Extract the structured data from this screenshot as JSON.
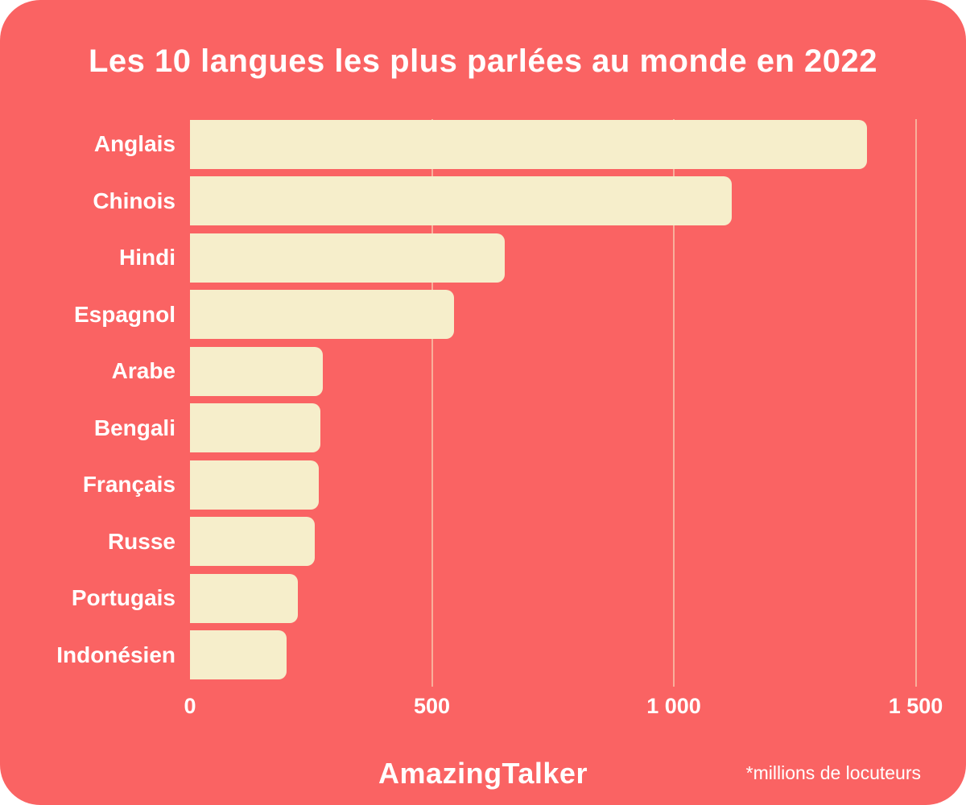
{
  "title": "Les 10 langues les plus parlées au monde en 2022",
  "footer": {
    "brand": "AmazingTalker",
    "note": "*millions de locuteurs"
  },
  "colors": {
    "card_background": "#fa6363",
    "bar_fill": "#f6eecb",
    "text": "#ffffff",
    "gridline": "rgba(246,238,203,0.55)",
    "page_background": "#ffffff"
  },
  "chart_data": {
    "type": "bar",
    "orientation": "horizontal",
    "title": "Les 10 langues les plus parlées au monde en 2022",
    "categories": [
      "Anglais",
      "Chinois",
      "Hindi",
      "Espagnol",
      "Arabe",
      "Bengali",
      "Français",
      "Russe",
      "Portugais",
      "Indonésien"
    ],
    "values": [
      1400,
      1120,
      650,
      545,
      275,
      270,
      267,
      258,
      223,
      199
    ],
    "unit": "millions de locuteurs",
    "xlabel": "",
    "ylabel": "",
    "xlim": [
      0,
      1500
    ],
    "x_ticks": [
      {
        "value": 0,
        "label": "0"
      },
      {
        "value": 500,
        "label": "500"
      },
      {
        "value": 1000,
        "label": "1 000"
      },
      {
        "value": 1500,
        "label": "1 500"
      }
    ],
    "grid": "vertical",
    "legend": "none"
  }
}
